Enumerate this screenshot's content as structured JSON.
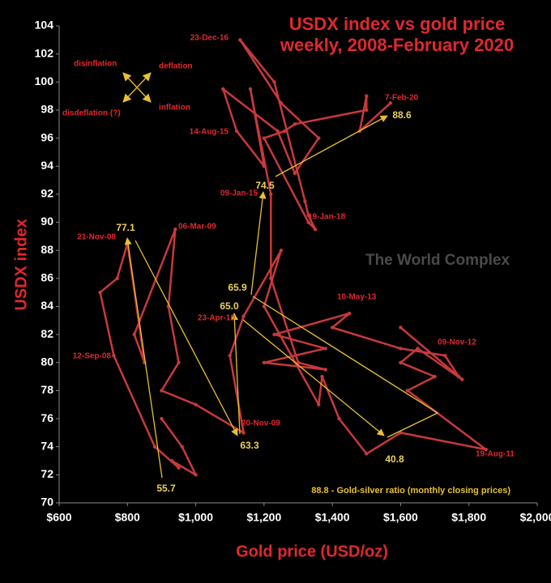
{
  "chart_data": {
    "type": "scatter",
    "title": "USDX index vs gold price",
    "subtitle": "weekly, 2008-February 2020",
    "x_label": "Gold price (USD/oz)",
    "y_label": "USDX index",
    "x": [
      900,
      960,
      1000,
      930,
      950,
      880,
      760,
      720,
      770,
      800,
      850,
      820,
      940,
      920,
      950,
      900,
      1000,
      1140,
      1100,
      1140,
      1250,
      1200,
      1360,
      1370,
      1420,
      1500,
      1600,
      1850,
      1620,
      1700,
      1600,
      1650,
      1780,
      1600,
      1770,
      1730,
      1600,
      1400,
      1450,
      1230,
      1380,
      1200,
      1380,
      1300,
      1220,
      1220,
      1160,
      1200,
      1120,
      1080,
      1240,
      1290,
      1360,
      1250,
      1130,
      1230,
      1320,
      1330,
      1350,
      1330,
      1200,
      1260,
      1290,
      1500,
      1500,
      1480,
      1570
    ],
    "series": [
      {
        "color": "#c8393c",
        "values": [
          76,
          74,
          72,
          73,
          72.5,
          74,
          80.5,
          85,
          86,
          88.5,
          80,
          82,
          89.5,
          84,
          80,
          78,
          77,
          75,
          80.5,
          83.3,
          88,
          84,
          77,
          79,
          76,
          73.5,
          75,
          73.8,
          78,
          79,
          80,
          81,
          78.8,
          82.5,
          79,
          80.5,
          81,
          82.5,
          83.5,
          82,
          81,
          80,
          79.5,
          80,
          86,
          92,
          99.5,
          94,
          96.5,
          99.5,
          96.5,
          93.5,
          96,
          98.5,
          103,
          100,
          91.5,
          90.5,
          89.5,
          90,
          96,
          96.5,
          97,
          98,
          99,
          96.5,
          98.5
        ]
      }
    ],
    "xlim": [
      600,
      2000
    ],
    "xticks": [
      {
        "value": 600,
        "label": "$600"
      },
      {
        "value": 800,
        "label": "$800"
      },
      {
        "value": 1000,
        "label": "$1,000"
      },
      {
        "value": 1200,
        "label": "$1,200"
      },
      {
        "value": 1400,
        "label": "$1,400"
      },
      {
        "value": 1600,
        "label": "$1,600"
      },
      {
        "value": 1800,
        "label": "$1,800"
      },
      {
        "value": 2000,
        "label": "$2,000"
      }
    ],
    "ylim": [
      70,
      104
    ],
    "yticks": [
      70,
      72,
      74,
      76,
      78,
      80,
      82,
      84,
      86,
      88,
      90,
      92,
      94,
      96,
      98,
      100,
      102,
      104
    ],
    "date_labels": [
      "23-Dec-16",
      "7-Feb-20",
      "14-Aug-15",
      "09-Jan-15",
      "19-Jan-18",
      "06-Mar-09",
      "21-Nov-08",
      "10-May-13",
      "23-Apr-10",
      "09-Nov-12",
      "12-Sep-08",
      "20-Nov-09",
      "19-Aug-11"
    ],
    "ratio_labels": [
      "88.6",
      "74.5",
      "77.1",
      "65.9",
      "65.0",
      "63.3",
      "40.8",
      "55.7"
    ],
    "ratio_note": "88.8 - Gold-silver ratio (monthly closing prices)",
    "quadrant_labels": [
      "disinflation",
      "deflation",
      "disdeflation (?)",
      "inflation"
    ],
    "watermark": "The World Complex",
    "grid": false
  }
}
